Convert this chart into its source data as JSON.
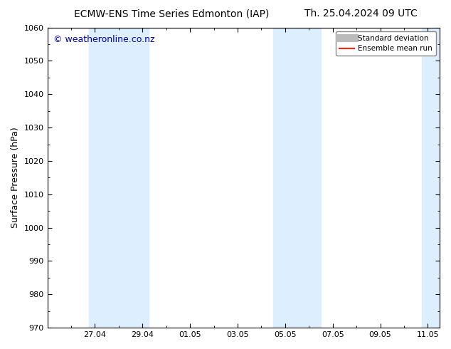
{
  "title_left": "ECMW-ENS Time Series Edmonton (IAP)",
  "title_right": "Th. 25.04.2024 09 UTC",
  "ylabel": "Surface Pressure (hPa)",
  "ylim": [
    970,
    1060
  ],
  "yticks": [
    970,
    980,
    990,
    1000,
    1010,
    1020,
    1030,
    1040,
    1050,
    1060
  ],
  "xlim": [
    0,
    16.5
  ],
  "xtick_labels": [
    "27.04",
    "29.04",
    "01.05",
    "03.05",
    "05.05",
    "07.05",
    "09.05",
    "11.05"
  ],
  "xtick_positions": [
    2,
    4,
    6,
    8,
    10,
    12,
    14,
    16
  ],
  "shaded_bands": [
    {
      "x_start": 1.75,
      "x_end": 4.25,
      "color": "#ddeeff"
    },
    {
      "x_start": 9.5,
      "x_end": 11.5,
      "color": "#ddeeff"
    },
    {
      "x_start": 15.75,
      "x_end": 16.5,
      "color": "#ddeeff"
    }
  ],
  "watermark_text": "© weatheronline.co.nz",
  "watermark_color": "#0000bb",
  "watermark_fontsize": 9,
  "legend_std_color": "#bbbbbb",
  "legend_std_lw": 8,
  "legend_mean_color": "#ff2200",
  "legend_mean_lw": 1.5,
  "bg_color": "#ffffff",
  "title_fontsize": 10,
  "tick_fontsize": 8,
  "ylabel_fontsize": 9,
  "fig_width": 6.34,
  "fig_height": 4.9,
  "dpi": 100
}
